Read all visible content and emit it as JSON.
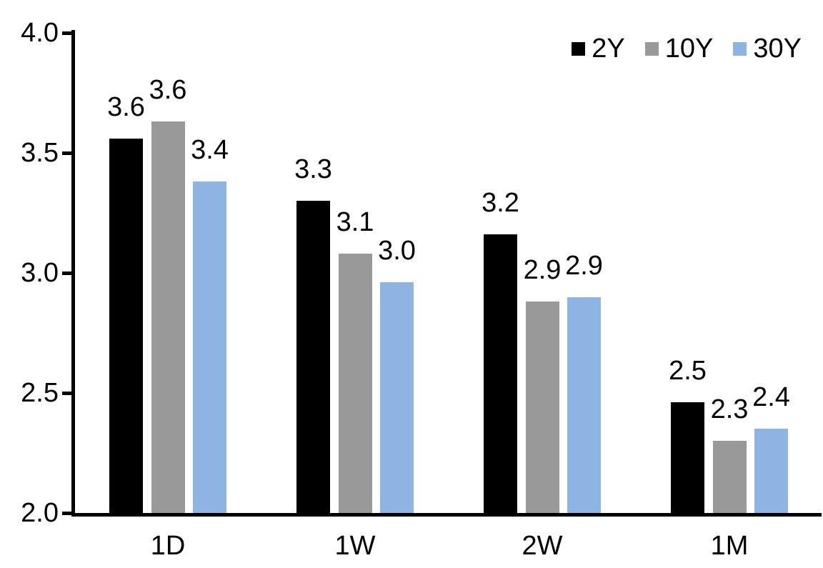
{
  "chart_data": {
    "type": "bar",
    "title": "",
    "xlabel": "",
    "ylabel": "",
    "categories": [
      "1D",
      "1W",
      "2W",
      "1M"
    ],
    "series": [
      {
        "name": "2Y",
        "color": "#000000",
        "values": [
          3.56,
          3.3,
          3.16,
          2.46
        ],
        "labels": [
          "3.6",
          "3.3",
          "3.2",
          "2.5"
        ]
      },
      {
        "name": "10Y",
        "color": "#999999",
        "values": [
          3.63,
          3.08,
          2.88,
          2.3
        ],
        "labels": [
          "3.6",
          "3.1",
          "2.9",
          "2.3"
        ]
      },
      {
        "name": "30Y",
        "color": "#8db4e2",
        "values": [
          3.38,
          2.96,
          2.9,
          2.35
        ],
        "labels": [
          "3.4",
          "3.0",
          "2.9",
          "2.4"
        ]
      }
    ],
    "ylim": [
      2.0,
      4.0
    ],
    "ytick_values": [
      2.0,
      2.5,
      3.0,
      3.5,
      4.0
    ],
    "ytick_labels": [
      "2.0",
      "2.5",
      "3.0",
      "3.5",
      "4.0"
    ],
    "grid": false,
    "legend_position": "top-right"
  },
  "colors": {
    "background": "#ffffff",
    "axis": "#000000",
    "text": "#000000"
  }
}
